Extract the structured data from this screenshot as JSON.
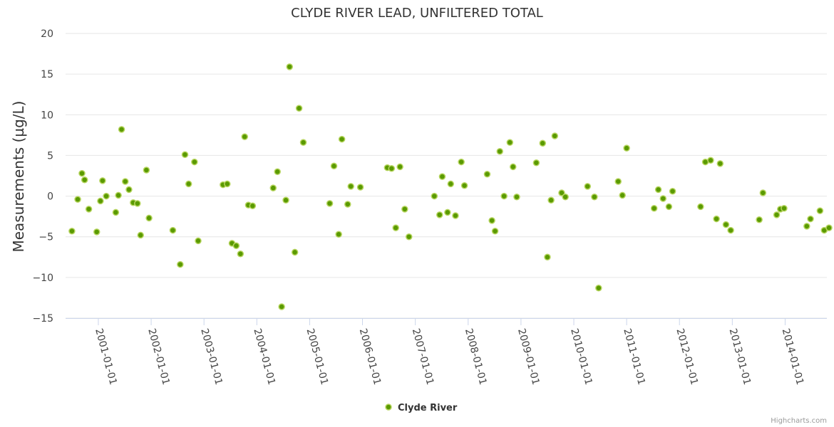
{
  "chart_data": {
    "type": "scatter",
    "title": "CLYDE RIVER LEAD, UNFILTERED TOTAL",
    "xlabel": "",
    "ylabel": "Measurements (µg/L)",
    "ylim": [
      -15,
      20
    ],
    "y_ticks": [
      20,
      15,
      10,
      5,
      0,
      -5,
      -10,
      -15
    ],
    "y_tick_labels": [
      "20",
      "15",
      "10",
      "5",
      "0",
      "−5",
      "−10",
      "−15"
    ],
    "x_ticks": [
      "2001-01-01",
      "2002-01-01",
      "2003-01-01",
      "2004-01-01",
      "2005-01-01",
      "2006-01-01",
      "2007-01-01",
      "2008-01-01",
      "2009-01-01",
      "2010-01-01",
      "2011-01-01",
      "2012-01-01",
      "2013-01-01",
      "2014-01-01"
    ],
    "x_range": [
      2000.38,
      2014.79
    ],
    "grid": true,
    "legend_position": "bottom-center",
    "color": "#7cb5ec",
    "marker_fill": "#5a9a00",
    "marker_stroke": "#b7d560",
    "series": [
      {
        "name": "Clyde River",
        "points": [
          [
            2000.5,
            -4.3
          ],
          [
            2000.61,
            -0.4
          ],
          [
            2000.69,
            2.8
          ],
          [
            2000.74,
            2.0
          ],
          [
            2000.82,
            -1.6
          ],
          [
            2000.97,
            -4.4
          ],
          [
            2001.04,
            -0.6
          ],
          [
            2001.08,
            1.9
          ],
          [
            2001.15,
            0.0
          ],
          [
            2001.33,
            -2.0
          ],
          [
            2001.38,
            0.1
          ],
          [
            2001.44,
            8.2
          ],
          [
            2001.51,
            1.8
          ],
          [
            2001.58,
            0.8
          ],
          [
            2001.66,
            -0.8
          ],
          [
            2001.74,
            -0.9
          ],
          [
            2001.8,
            -4.8
          ],
          [
            2001.91,
            3.2
          ],
          [
            2001.96,
            -2.7
          ],
          [
            2002.41,
            -4.2
          ],
          [
            2002.55,
            -8.4
          ],
          [
            2002.64,
            5.1
          ],
          [
            2002.71,
            1.5
          ],
          [
            2002.82,
            4.2
          ],
          [
            2002.89,
            -5.5
          ],
          [
            2003.36,
            1.4
          ],
          [
            2003.44,
            1.5
          ],
          [
            2003.53,
            -5.8
          ],
          [
            2003.61,
            -6.1
          ],
          [
            2003.69,
            -7.1
          ],
          [
            2003.77,
            7.3
          ],
          [
            2003.84,
            -1.1
          ],
          [
            2003.92,
            -1.2
          ],
          [
            2004.31,
            1.0
          ],
          [
            2004.39,
            3.0
          ],
          [
            2004.47,
            -13.6
          ],
          [
            2004.55,
            -0.5
          ],
          [
            2004.62,
            15.9
          ],
          [
            2004.72,
            -6.9
          ],
          [
            2004.8,
            10.8
          ],
          [
            2004.88,
            6.6
          ],
          [
            2005.38,
            -0.9
          ],
          [
            2005.46,
            3.7
          ],
          [
            2005.55,
            -4.7
          ],
          [
            2005.61,
            7.0
          ],
          [
            2005.72,
            -1.0
          ],
          [
            2005.78,
            1.2
          ],
          [
            2005.96,
            1.1
          ],
          [
            2006.47,
            3.5
          ],
          [
            2006.55,
            3.4
          ],
          [
            2006.63,
            -3.9
          ],
          [
            2006.71,
            3.6
          ],
          [
            2006.8,
            -1.6
          ],
          [
            2006.88,
            -5.0
          ],
          [
            2007.36,
            0.0
          ],
          [
            2007.46,
            -2.3
          ],
          [
            2007.51,
            2.4
          ],
          [
            2007.61,
            -2.0
          ],
          [
            2007.67,
            1.5
          ],
          [
            2007.76,
            -2.4
          ],
          [
            2007.87,
            4.2
          ],
          [
            2007.93,
            1.3
          ],
          [
            2008.36,
            2.7
          ],
          [
            2008.45,
            -3.0
          ],
          [
            2008.51,
            -4.3
          ],
          [
            2008.6,
            5.5
          ],
          [
            2008.68,
            0.0
          ],
          [
            2008.79,
            6.6
          ],
          [
            2008.85,
            3.6
          ],
          [
            2008.92,
            -0.1
          ],
          [
            2009.29,
            4.1
          ],
          [
            2009.41,
            6.5
          ],
          [
            2009.5,
            -7.5
          ],
          [
            2009.57,
            -0.5
          ],
          [
            2009.64,
            7.4
          ],
          [
            2009.77,
            0.4
          ],
          [
            2009.84,
            -0.1
          ],
          [
            2010.26,
            1.2
          ],
          [
            2010.39,
            -0.1
          ],
          [
            2010.47,
            -11.3
          ],
          [
            2010.84,
            1.8
          ],
          [
            2010.92,
            0.1
          ],
          [
            2011.0,
            5.9
          ],
          [
            2011.52,
            -1.5
          ],
          [
            2011.6,
            0.8
          ],
          [
            2011.69,
            -0.3
          ],
          [
            2011.8,
            -1.3
          ],
          [
            2011.87,
            0.6
          ],
          [
            2012.4,
            -1.3
          ],
          [
            2012.49,
            4.2
          ],
          [
            2012.59,
            4.4
          ],
          [
            2012.7,
            -2.8
          ],
          [
            2012.77,
            4.0
          ],
          [
            2012.88,
            -3.5
          ],
          [
            2012.97,
            -4.2
          ],
          [
            2013.51,
            -2.9
          ],
          [
            2013.58,
            0.4
          ],
          [
            2013.84,
            -2.3
          ],
          [
            2013.91,
            -1.6
          ],
          [
            2013.98,
            -1.5
          ],
          [
            2014.41,
            -3.7
          ],
          [
            2014.48,
            -2.8
          ],
          [
            2014.66,
            -1.8
          ],
          [
            2014.74,
            -4.2
          ],
          [
            2014.83,
            -3.9
          ]
        ]
      }
    ],
    "credits": "Highcharts.com"
  }
}
